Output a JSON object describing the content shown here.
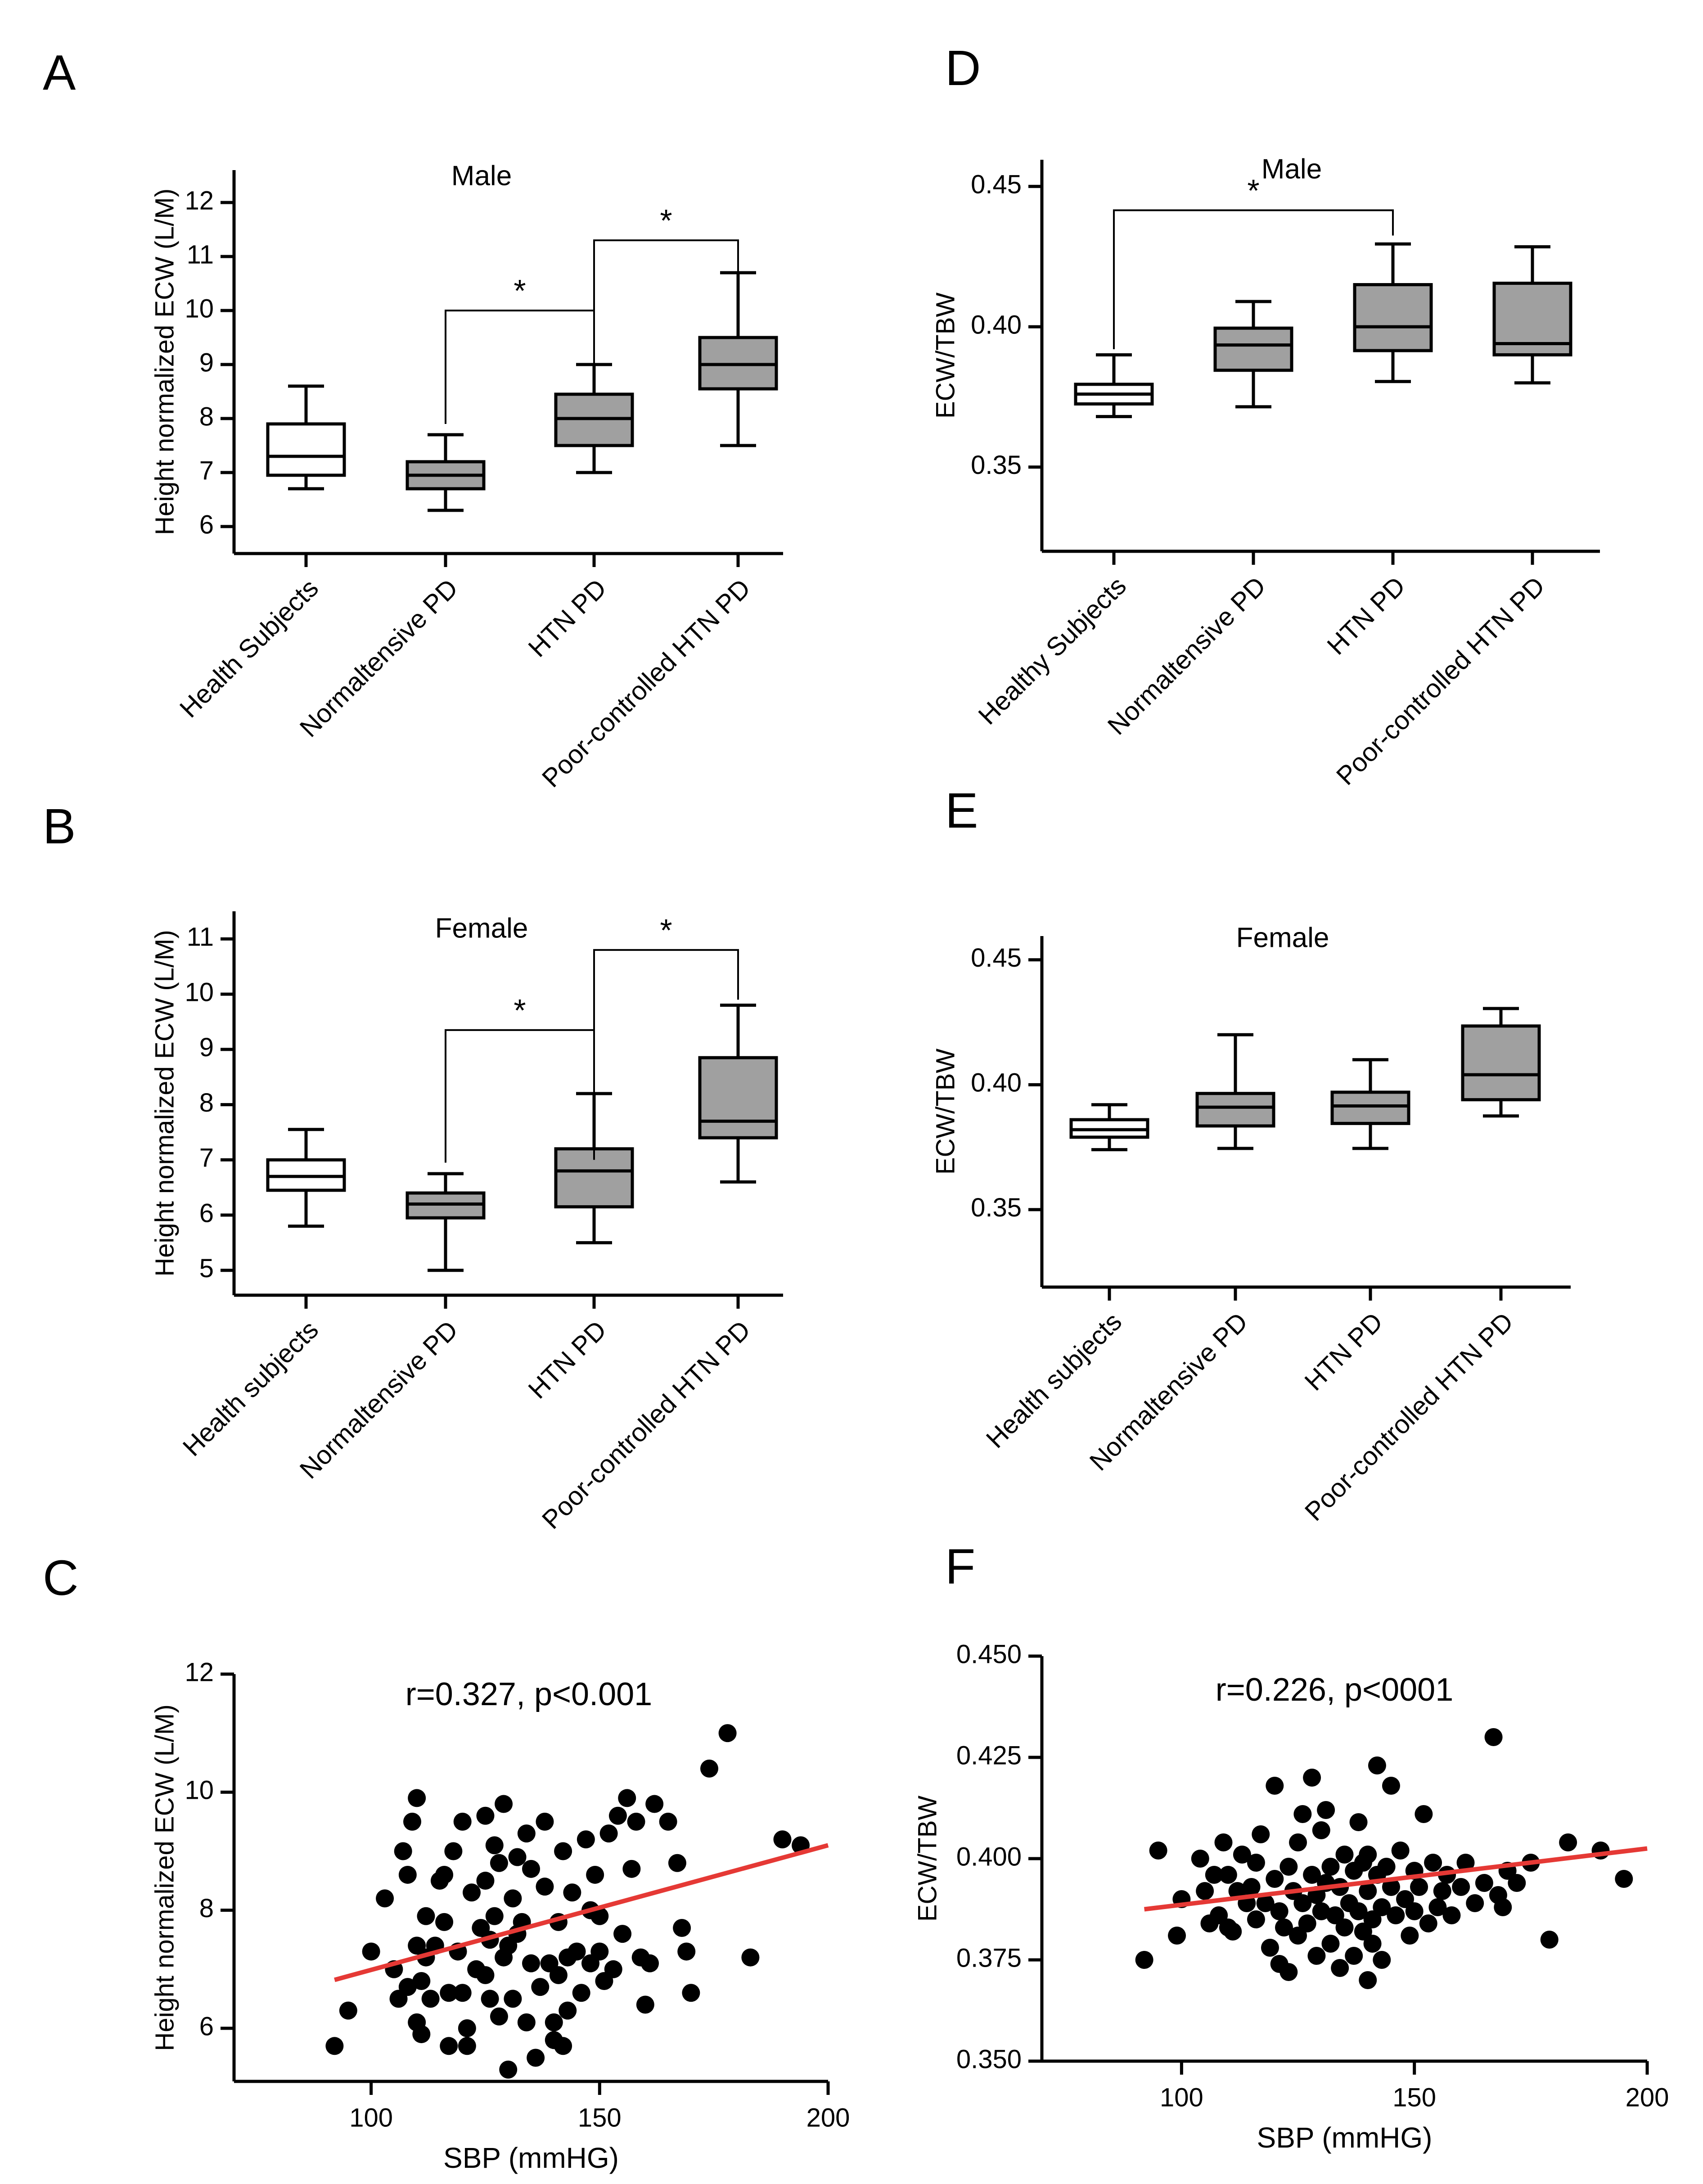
{
  "chart_data": [
    {
      "panel": "A",
      "type": "box",
      "title": "Male",
      "ylabel": "Height normalized ECW  (L/M)",
      "ylim": [
        5.5,
        12.6
      ],
      "yticks": [
        6,
        7,
        8,
        9,
        10,
        11,
        12
      ],
      "categories": [
        "Health Subjects",
        "Normaltensive PD",
        "HTN PD",
        "Poor-controlled HTN PD"
      ],
      "boxes": [
        {
          "min": 6.7,
          "q1": 6.95,
          "median": 7.3,
          "q3": 7.9,
          "max": 8.6,
          "fill": "#ffffff"
        },
        {
          "min": 6.3,
          "q1": 6.7,
          "median": 6.95,
          "q3": 7.2,
          "max": 7.7,
          "fill": "#a0a0a0"
        },
        {
          "min": 7.0,
          "q1": 7.5,
          "median": 8.0,
          "q3": 8.45,
          "max": 9.0,
          "fill": "#a0a0a0"
        },
        {
          "min": 7.5,
          "q1": 8.55,
          "median": 9.0,
          "q3": 9.5,
          "max": 10.7,
          "fill": "#a0a0a0"
        }
      ],
      "significance": [
        {
          "from": 1,
          "to": 2,
          "yLow1": 7.9,
          "yLow2": 9.0,
          "yTop": 10.0,
          "label": "*"
        },
        {
          "from": 2,
          "to": 3,
          "yLow1": 9.4,
          "yLow2": 10.7,
          "yTop": 11.3,
          "label": "*"
        }
      ]
    },
    {
      "panel": "B",
      "type": "box",
      "title": "Female",
      "ylabel": "Height normalized ECW  (L/M)",
      "ylim": [
        4.55,
        11.5
      ],
      "yticks": [
        5,
        6,
        7,
        8,
        9,
        10,
        11
      ],
      "categories": [
        "Health subjects",
        "Normaltensive PD",
        "HTN PD",
        "Poor-controlled HTN PD"
      ],
      "boxes": [
        {
          "min": 5.8,
          "q1": 6.45,
          "median": 6.7,
          "q3": 7.0,
          "max": 7.55,
          "fill": "#ffffff"
        },
        {
          "min": 5.0,
          "q1": 5.95,
          "median": 6.2,
          "q3": 6.4,
          "max": 6.75,
          "fill": "#a0a0a0"
        },
        {
          "min": 5.5,
          "q1": 6.15,
          "median": 6.8,
          "q3": 7.2,
          "max": 8.2,
          "fill": "#a0a0a0"
        },
        {
          "min": 6.6,
          "q1": 7.4,
          "median": 7.7,
          "q3": 8.85,
          "max": 9.8,
          "fill": "#a0a0a0"
        }
      ],
      "significance": [
        {
          "from": 1,
          "to": 2,
          "yLow1": 6.95,
          "yLow2": 8.3,
          "yTop": 9.35,
          "label": "*"
        },
        {
          "from": 2,
          "to": 3,
          "yLow1": 7.0,
          "yLow2": 9.9,
          "yTop": 10.8,
          "label": "*"
        }
      ]
    },
    {
      "panel": "D",
      "type": "box",
      "title": "Male",
      "ylabel": "ECW/TBW",
      "ylim": [
        0.32,
        0.4595
      ],
      "yticks": [
        0.35,
        0.4,
        0.45
      ],
      "tick_decimals": 2,
      "categories": [
        "Healthy Subjects",
        "Normaltensive PD",
        "HTN PD",
        "Poor-controlled HTN PD"
      ],
      "boxes": [
        {
          "min": 0.368,
          "q1": 0.3725,
          "median": 0.376,
          "q3": 0.3795,
          "max": 0.39,
          "fill": "#ffffff"
        },
        {
          "min": 0.3715,
          "q1": 0.3845,
          "median": 0.3935,
          "q3": 0.3995,
          "max": 0.409,
          "fill": "#a0a0a0"
        },
        {
          "min": 0.3805,
          "q1": 0.3915,
          "median": 0.4,
          "q3": 0.415,
          "max": 0.4295,
          "fill": "#a0a0a0"
        },
        {
          "min": 0.38,
          "q1": 0.39,
          "median": 0.394,
          "q3": 0.4155,
          "max": 0.4285,
          "fill": "#a0a0a0"
        }
      ],
      "significance": [
        {
          "from": 0,
          "to": 2,
          "yLow1": 0.392,
          "yLow2": 0.4325,
          "yTop": 0.4415,
          "label": "*"
        }
      ]
    },
    {
      "panel": "E",
      "type": "box",
      "title": "Female",
      "ylabel": "ECW/TBW",
      "ylim": [
        0.319,
        0.4595
      ],
      "yticks": [
        0.35,
        0.4,
        0.45
      ],
      "tick_decimals": 2,
      "categories": [
        "Health subjects",
        "Normaltensive PD",
        "HTN PD",
        "Poor-controlled HTN PD"
      ],
      "boxes": [
        {
          "min": 0.374,
          "q1": 0.379,
          "median": 0.382,
          "q3": 0.386,
          "max": 0.392,
          "fill": "#ffffff"
        },
        {
          "min": 0.3745,
          "q1": 0.3835,
          "median": 0.391,
          "q3": 0.3965,
          "max": 0.42,
          "fill": "#a0a0a0"
        },
        {
          "min": 0.3745,
          "q1": 0.3845,
          "median": 0.3915,
          "q3": 0.397,
          "max": 0.41,
          "fill": "#a0a0a0"
        },
        {
          "min": 0.3875,
          "q1": 0.394,
          "median": 0.404,
          "q3": 0.4235,
          "max": 0.4305,
          "fill": "#a0a0a0"
        }
      ],
      "significance": []
    },
    {
      "panel": "C",
      "type": "scatter",
      "annotation": "r=0.327, p<0.001",
      "xlabel": "SBP  (mmHG)",
      "ylabel": "Height normalized ECW  (L/M)",
      "xlim": [
        70,
        200
      ],
      "ylim": [
        5.1,
        12
      ],
      "xticks": [
        100,
        150,
        200
      ],
      "yticks": [
        6,
        8,
        10,
        12
      ],
      "trend": {
        "x1": 92,
        "y1": 6.82,
        "x2": 200,
        "y2": 9.1,
        "color": "#e53935"
      },
      "points": [
        [
          92,
          5.7
        ],
        [
          95,
          6.3
        ],
        [
          100,
          7.3
        ],
        [
          103,
          8.2
        ],
        [
          105,
          7.0
        ],
        [
          106,
          6.5
        ],
        [
          107,
          9.0
        ],
        [
          108,
          6.7
        ],
        [
          108,
          8.6
        ],
        [
          109,
          9.5
        ],
        [
          110,
          7.4
        ],
        [
          110,
          9.9
        ],
        [
          110,
          6.1
        ],
        [
          111,
          5.9
        ],
        [
          111,
          6.8
        ],
        [
          112,
          7.9
        ],
        [
          112,
          7.2
        ],
        [
          113,
          6.5
        ],
        [
          114,
          7.4
        ],
        [
          115,
          8.5
        ],
        [
          116,
          8.6
        ],
        [
          116,
          7.8
        ],
        [
          117,
          6.6
        ],
        [
          117,
          5.7
        ],
        [
          118,
          9.0
        ],
        [
          119,
          7.3
        ],
        [
          120,
          9.5
        ],
        [
          120,
          6.6
        ],
        [
          121,
          6.0
        ],
        [
          121,
          5.7
        ],
        [
          122,
          8.3
        ],
        [
          123,
          7.0
        ],
        [
          124,
          7.7
        ],
        [
          125,
          9.6
        ],
        [
          125,
          8.5
        ],
        [
          125,
          6.9
        ],
        [
          126,
          7.5
        ],
        [
          126,
          6.5
        ],
        [
          127,
          7.9
        ],
        [
          127,
          9.1
        ],
        [
          128,
          8.8
        ],
        [
          128,
          6.2
        ],
        [
          129,
          9.8
        ],
        [
          129,
          7.2
        ],
        [
          130,
          7.4
        ],
        [
          130,
          5.3
        ],
        [
          131,
          8.2
        ],
        [
          131,
          6.5
        ],
        [
          132,
          8.9
        ],
        [
          132,
          7.6
        ],
        [
          133,
          7.8
        ],
        [
          134,
          9.3
        ],
        [
          134,
          6.1
        ],
        [
          135,
          8.7
        ],
        [
          135,
          7.1
        ],
        [
          136,
          5.5
        ],
        [
          137,
          6.7
        ],
        [
          138,
          8.4
        ],
        [
          138,
          9.5
        ],
        [
          139,
          7.1
        ],
        [
          140,
          6.1
        ],
        [
          140,
          5.8
        ],
        [
          141,
          7.8
        ],
        [
          141,
          6.9
        ],
        [
          142,
          9.0
        ],
        [
          142,
          5.7
        ],
        [
          143,
          7.2
        ],
        [
          143,
          6.3
        ],
        [
          144,
          8.3
        ],
        [
          145,
          7.3
        ],
        [
          146,
          6.6
        ],
        [
          147,
          9.2
        ],
        [
          148,
          8.0
        ],
        [
          148,
          7.1
        ],
        [
          149,
          8.6
        ],
        [
          150,
          7.9
        ],
        [
          150,
          7.3
        ],
        [
          151,
          6.8
        ],
        [
          152,
          9.3
        ],
        [
          153,
          7.0
        ],
        [
          154,
          9.6
        ],
        [
          155,
          7.6
        ],
        [
          156,
          9.9
        ],
        [
          157,
          8.7
        ],
        [
          158,
          9.5
        ],
        [
          159,
          7.2
        ],
        [
          160,
          6.4
        ],
        [
          161,
          7.1
        ],
        [
          162,
          9.8
        ],
        [
          165,
          9.5
        ],
        [
          167,
          8.8
        ],
        [
          168,
          7.7
        ],
        [
          169,
          7.3
        ],
        [
          170,
          6.6
        ],
        [
          174,
          10.4
        ],
        [
          178,
          11.0
        ],
        [
          183,
          7.2
        ],
        [
          190,
          9.2
        ],
        [
          194,
          9.1
        ]
      ]
    },
    {
      "panel": "F",
      "type": "scatter",
      "annotation": "r=0.226, p<0001",
      "xlabel": "SBP  (mmHG)",
      "ylabel": "ECW/TBW",
      "xlim": [
        70,
        200
      ],
      "ylim": [
        0.35,
        0.45
      ],
      "xticks": [
        100,
        150,
        200
      ],
      "yticks": [
        0.35,
        0.375,
        0.4,
        0.425,
        0.45
      ],
      "tick_decimals": 3,
      "trend": {
        "x1": 92,
        "y1": 0.3875,
        "x2": 200,
        "y2": 0.4025,
        "color": "#e53935"
      },
      "points": [
        [
          92,
          0.375
        ],
        [
          95,
          0.402
        ],
        [
          99,
          0.381
        ],
        [
          100,
          0.39
        ],
        [
          104,
          0.4
        ],
        [
          105,
          0.392
        ],
        [
          106,
          0.384
        ],
        [
          107,
          0.396
        ],
        [
          108,
          0.386
        ],
        [
          109,
          0.404
        ],
        [
          110,
          0.383
        ],
        [
          110,
          0.396
        ],
        [
          111,
          0.382
        ],
        [
          112,
          0.392
        ],
        [
          113,
          0.401
        ],
        [
          114,
          0.389
        ],
        [
          115,
          0.393
        ],
        [
          116,
          0.399
        ],
        [
          116,
          0.385
        ],
        [
          117,
          0.406
        ],
        [
          118,
          0.389
        ],
        [
          119,
          0.378
        ],
        [
          120,
          0.395
        ],
        [
          120,
          0.418
        ],
        [
          121,
          0.374
        ],
        [
          121,
          0.387
        ],
        [
          122,
          0.383
        ],
        [
          123,
          0.398
        ],
        [
          123,
          0.372
        ],
        [
          124,
          0.392
        ],
        [
          125,
          0.404
        ],
        [
          125,
          0.381
        ],
        [
          126,
          0.389
        ],
        [
          126,
          0.411
        ],
        [
          127,
          0.384
        ],
        [
          128,
          0.42
        ],
        [
          128,
          0.396
        ],
        [
          129,
          0.391
        ],
        [
          129,
          0.376
        ],
        [
          130,
          0.407
        ],
        [
          130,
          0.387
        ],
        [
          131,
          0.394
        ],
        [
          131,
          0.412
        ],
        [
          132,
          0.379
        ],
        [
          132,
          0.398
        ],
        [
          133,
          0.386
        ],
        [
          134,
          0.393
        ],
        [
          134,
          0.373
        ],
        [
          135,
          0.401
        ],
        [
          135,
          0.383
        ],
        [
          136,
          0.389
        ],
        [
          137,
          0.397
        ],
        [
          137,
          0.376
        ],
        [
          138,
          0.387
        ],
        [
          138,
          0.409
        ],
        [
          139,
          0.399
        ],
        [
          139,
          0.382
        ],
        [
          140,
          0.37
        ],
        [
          140,
          0.392
        ],
        [
          140,
          0.401
        ],
        [
          141,
          0.385
        ],
        [
          141,
          0.379
        ],
        [
          142,
          0.396
        ],
        [
          142,
          0.423
        ],
        [
          143,
          0.388
        ],
        [
          143,
          0.375
        ],
        [
          144,
          0.398
        ],
        [
          145,
          0.418
        ],
        [
          145,
          0.393
        ],
        [
          146,
          0.386
        ],
        [
          147,
          0.402
        ],
        [
          148,
          0.39
        ],
        [
          149,
          0.381
        ],
        [
          150,
          0.397
        ],
        [
          150,
          0.387
        ],
        [
          151,
          0.393
        ],
        [
          152,
          0.411
        ],
        [
          153,
          0.384
        ],
        [
          154,
          0.399
        ],
        [
          155,
          0.388
        ],
        [
          156,
          0.392
        ],
        [
          157,
          0.396
        ],
        [
          158,
          0.386
        ],
        [
          160,
          0.393
        ],
        [
          161,
          0.399
        ],
        [
          163,
          0.389
        ],
        [
          165,
          0.394
        ],
        [
          167,
          0.43
        ],
        [
          168,
          0.391
        ],
        [
          169,
          0.388
        ],
        [
          170,
          0.397
        ],
        [
          172,
          0.394
        ],
        [
          175,
          0.399
        ],
        [
          179,
          0.38
        ],
        [
          183,
          0.404
        ],
        [
          190,
          0.402
        ],
        [
          195,
          0.395
        ]
      ]
    }
  ],
  "panel_letters": [
    "A",
    "B",
    "C",
    "D",
    "E",
    "F"
  ]
}
